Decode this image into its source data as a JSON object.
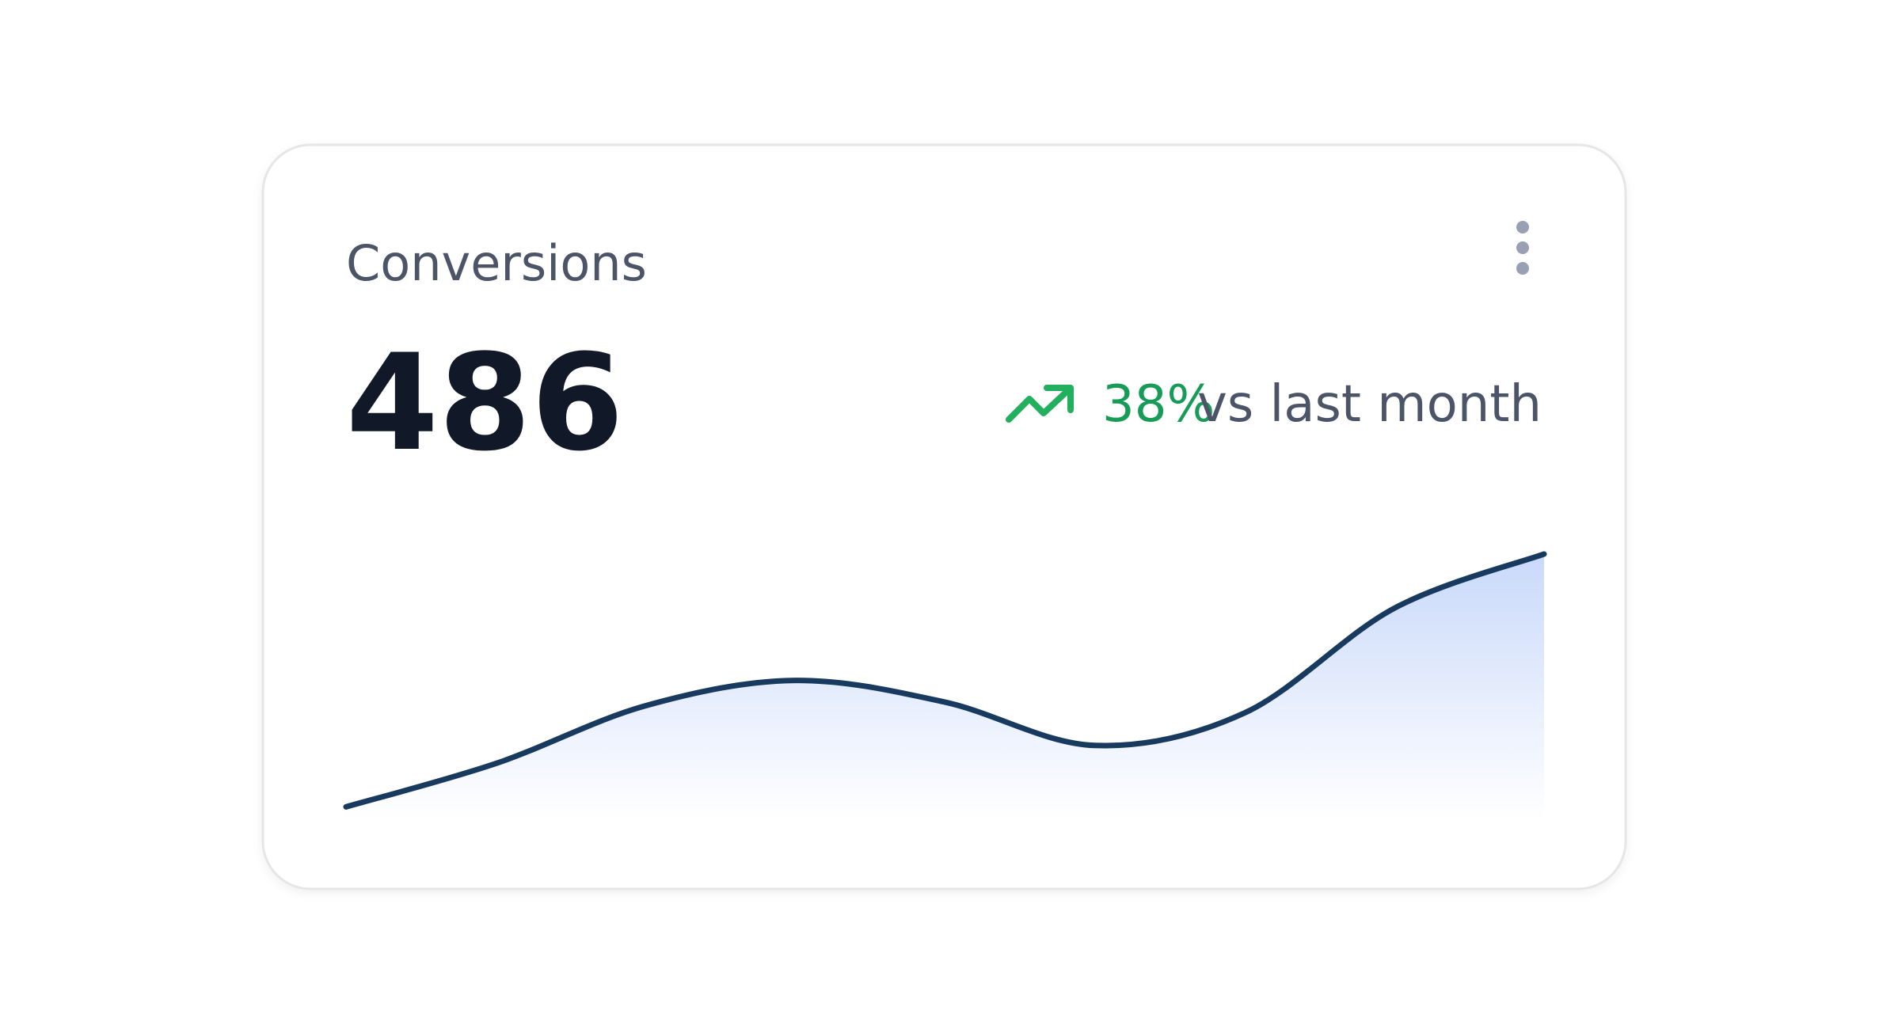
{
  "card": {
    "title": "Conversions",
    "value": 486,
    "change": "38%",
    "comparison": "vs last month",
    "sparkline": {
      "type": "area",
      "values": [
        10,
        22,
        38,
        45,
        39,
        27,
        36,
        65,
        80
      ],
      "color": "#173a5e"
    }
  }
}
